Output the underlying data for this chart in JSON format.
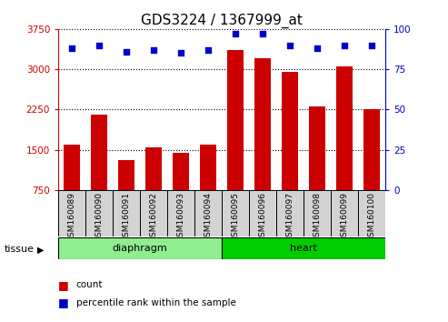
{
  "title": "GDS3224 / 1367999_at",
  "samples": [
    "GSM160089",
    "GSM160090",
    "GSM160091",
    "GSM160092",
    "GSM160093",
    "GSM160094",
    "GSM160095",
    "GSM160096",
    "GSM160097",
    "GSM160098",
    "GSM160099",
    "GSM160100"
  ],
  "counts": [
    1600,
    2150,
    1300,
    1550,
    1450,
    1600,
    3350,
    3200,
    2950,
    2300,
    3050,
    2250
  ],
  "percentiles": [
    88,
    90,
    86,
    87,
    85,
    87,
    97,
    97,
    90,
    88,
    90,
    90
  ],
  "ylim_left": [
    750,
    3750
  ],
  "ylim_right": [
    0,
    100
  ],
  "yticks_left": [
    750,
    1500,
    2250,
    3000,
    3750
  ],
  "yticks_right": [
    0,
    25,
    50,
    75,
    100
  ],
  "bar_color": "#CC0000",
  "dot_color": "#0000CC",
  "grid_color": "#000000",
  "tissue_groups": [
    {
      "label": "diaphragm",
      "start": 0,
      "end": 6,
      "color": "#90EE90"
    },
    {
      "label": "heart",
      "start": 6,
      "end": 12,
      "color": "#00CC00"
    }
  ],
  "legend_bar_label": "count",
  "legend_dot_label": "percentile rank within the sample",
  "tissue_label": "tissue",
  "bar_width": 0.6,
  "title_fontsize": 11,
  "tick_fontsize": 7.5,
  "left_axis_color": "#CC0000",
  "right_axis_color": "#0000CC",
  "label_bg_color": "#D3D3D3"
}
